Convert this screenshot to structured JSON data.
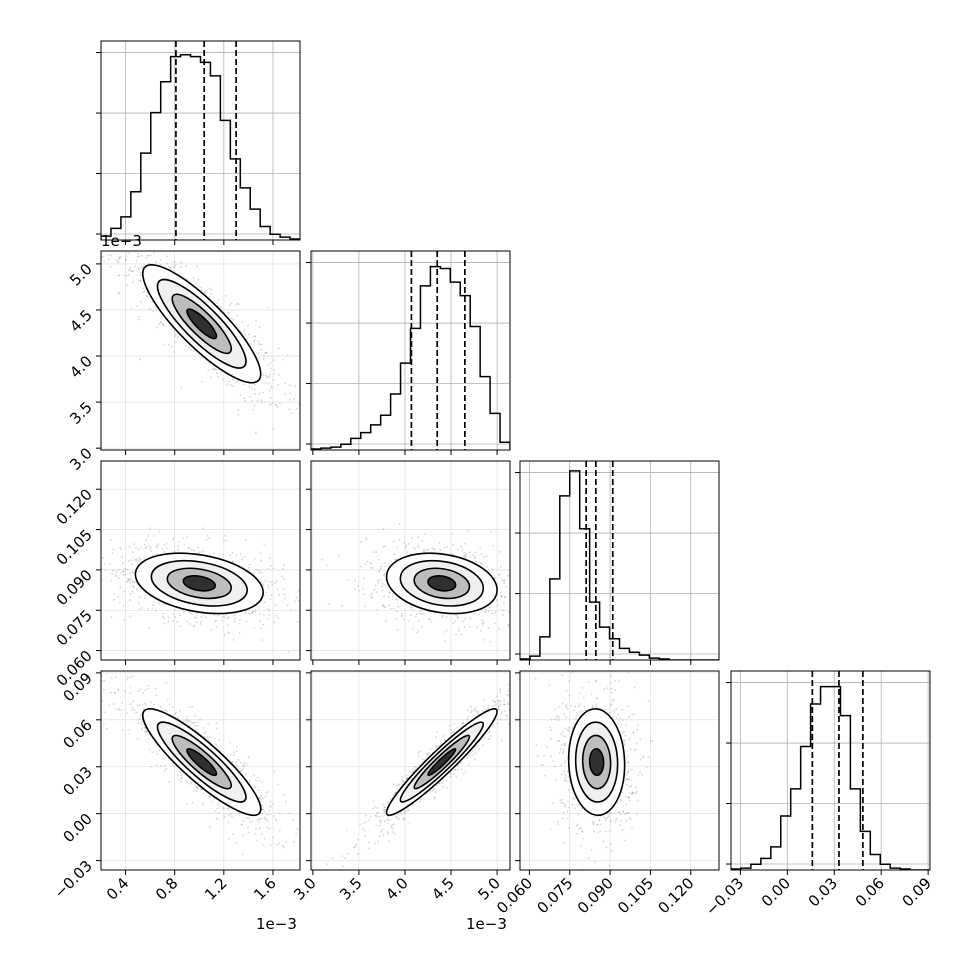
{
  "chart_data": {
    "type": "corner",
    "params": 4,
    "grid": true,
    "hist_color": "#000000",
    "density_color": "#000000",
    "offset_labels": {
      "p0": "1e−3",
      "p1": "1e−3"
    },
    "ranges": [
      [
        0.0002,
        0.00182
      ],
      [
        0.00298,
        0.00514
      ],
      [
        0.0565,
        0.1305
      ],
      [
        -0.036,
        0.0912
      ]
    ],
    "ticks": [
      {
        "values": [
          0.0004,
          0.0008,
          0.0012,
          0.0016
        ],
        "labels": [
          "0.4",
          "0.8",
          "1.2",
          "1.6"
        ]
      },
      {
        "values": [
          0.003,
          0.0035,
          0.004,
          0.0045,
          0.005
        ],
        "labels": [
          "3.0",
          "3.5",
          "4.0",
          "4.5",
          "5.0"
        ]
      },
      {
        "values": [
          0.06,
          0.075,
          0.09,
          0.105,
          0.12
        ],
        "labels": [
          "0.060",
          "0.075",
          "0.090",
          "0.105",
          "0.120"
        ]
      },
      {
        "values": [
          -0.03,
          0.0,
          0.03,
          0.06,
          0.09
        ],
        "labels": [
          "−0.03",
          "0.00",
          "0.03",
          "0.06",
          "0.09"
        ]
      }
    ],
    "quantiles": [
      [
        0.00081,
        0.00104,
        0.0013
      ],
      [
        0.00407,
        0.00435,
        0.00465
      ],
      [
        0.0811,
        0.0847,
        0.091
      ],
      [
        0.016,
        0.033,
        0.0483
      ]
    ],
    "histograms": [
      {
        "counts": [
          0.02,
          0.06,
          0.12,
          0.25,
          0.45,
          0.66,
          0.82,
          0.95,
          0.96,
          0.95,
          0.92,
          0.85,
          0.62,
          0.42,
          0.27,
          0.16,
          0.07,
          0.03,
          0.015,
          0.005
        ]
      },
      {
        "counts": [
          0.005,
          0.01,
          0.015,
          0.03,
          0.06,
          0.09,
          0.13,
          0.18,
          0.29,
          0.45,
          0.63,
          0.85,
          0.95,
          0.94,
          0.87,
          0.8,
          0.64,
          0.38,
          0.19,
          0.04
        ]
      },
      {
        "counts": [
          0.005,
          0.02,
          0.12,
          0.42,
          0.85,
          0.98,
          0.68,
          0.3,
          0.17,
          0.11,
          0.06,
          0.04,
          0.025,
          0.01,
          0.005,
          0.0,
          0.0,
          0.0,
          0.0,
          0.0
        ]
      },
      {
        "counts": [
          0.005,
          0.01,
          0.03,
          0.06,
          0.12,
          0.28,
          0.42,
          0.64,
          0.86,
          0.95,
          0.95,
          0.8,
          0.42,
          0.2,
          0.08,
          0.03,
          0.01,
          0.005,
          0.0,
          0.0
        ]
      }
    ],
    "pairs": [
      {
        "x": 0,
        "y": 1,
        "mean": [
          0.00102,
          0.00435
        ],
        "sd": [
          0.00024,
          0.00032
        ],
        "rho": -0.85
      },
      {
        "x": 0,
        "y": 2,
        "mean": [
          0.001,
          0.085
        ],
        "sd": [
          0.00026,
          0.0056
        ],
        "rho": -0.3
      },
      {
        "x": 1,
        "y": 2,
        "mean": [
          0.0044,
          0.085
        ],
        "sd": [
          0.0003,
          0.0056
        ],
        "rho": -0.22
      },
      {
        "x": 0,
        "y": 3,
        "mean": [
          0.00102,
          0.033
        ],
        "sd": [
          0.00024,
          0.017
        ],
        "rho": -0.88
      },
      {
        "x": 1,
        "y": 3,
        "mean": [
          0.0044,
          0.033
        ],
        "sd": [
          0.0003,
          0.017
        ],
        "rho": 0.95
      },
      {
        "x": 2,
        "y": 3,
        "mean": [
          0.085,
          0.033
        ],
        "sd": [
          0.0052,
          0.017
        ],
        "rho": -0.05
      }
    ]
  }
}
